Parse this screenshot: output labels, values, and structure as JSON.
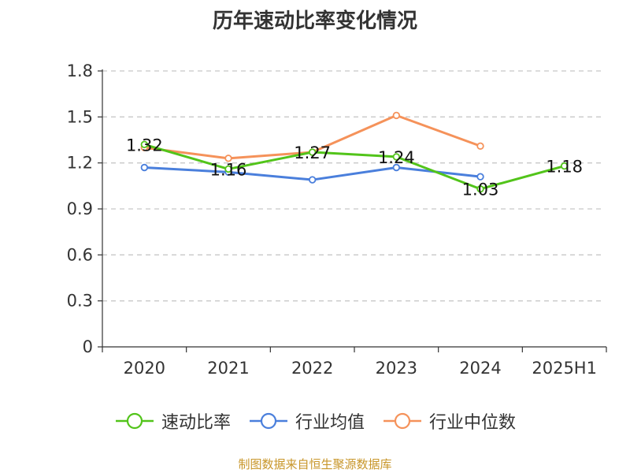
{
  "title": "历年速动比率变化情况",
  "source": "制图数据来自恒生聚源数据库",
  "chart_data": {
    "type": "line",
    "categories": [
      "2020",
      "2021",
      "2022",
      "2023",
      "2024",
      "2025H1"
    ],
    "ylim": [
      0,
      1.8
    ],
    "yticks": [
      "0",
      "0.3",
      "0.6",
      "0.9",
      "1.2",
      "1.5",
      "1.8"
    ],
    "grid": true,
    "legend_position": "bottom",
    "series": [
      {
        "name": "速动比率",
        "color": "#52c41a",
        "values": [
          1.32,
          1.16,
          1.27,
          1.24,
          1.03,
          1.18
        ],
        "labels": [
          "1.32",
          "1.16",
          "1.27",
          "1.24",
          "1.03",
          "1.18"
        ]
      },
      {
        "name": "行业均值",
        "color": "#4a7fdc",
        "values": [
          1.17,
          1.14,
          1.09,
          1.17,
          1.11,
          null
        ]
      },
      {
        "name": "行业中位数",
        "color": "#f5925a",
        "values": [
          1.3,
          1.23,
          1.27,
          1.51,
          1.31,
          null
        ]
      }
    ]
  }
}
